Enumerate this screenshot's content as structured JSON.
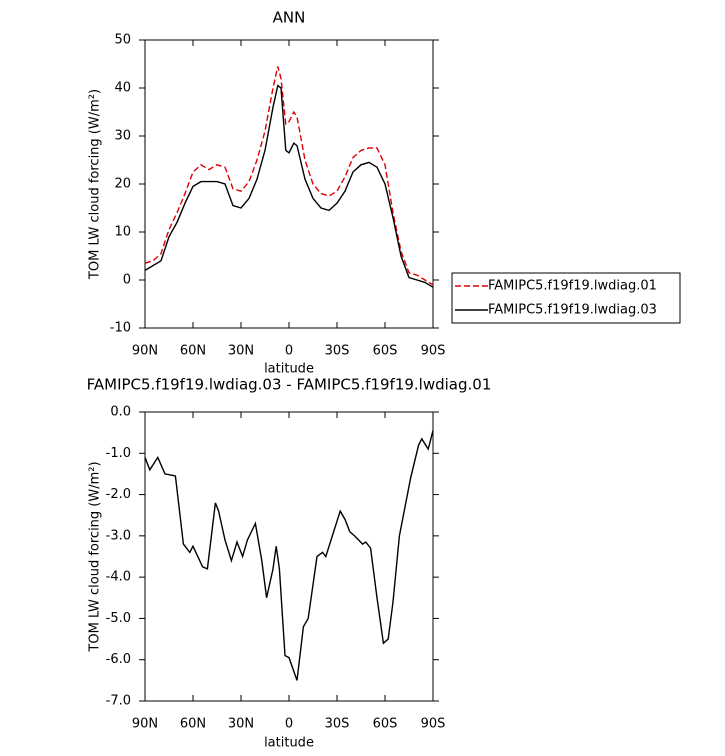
{
  "chart_data": [
    {
      "type": "line",
      "title": "ANN",
      "xlabel": "latitude",
      "ylabel": "TOM LW cloud forcing (W/m²)",
      "x": [
        90,
        85,
        80,
        75,
        70,
        65,
        60,
        55,
        50,
        45,
        40,
        35,
        30,
        25,
        20,
        15,
        10,
        7,
        5,
        2,
        0,
        -3,
        -5,
        -10,
        -15,
        -20,
        -25,
        -30,
        -35,
        -40,
        -45,
        -50,
        -55,
        -60,
        -65,
        -70,
        -75,
        -80,
        -85,
        -90
      ],
      "series": [
        {
          "name": "FAMIPC5.f19f19.lwdiag.01",
          "color": "#e00000",
          "line_style": "dashed",
          "values": [
            3.5,
            4,
            5.5,
            10.5,
            14,
            18,
            22.5,
            24,
            23,
            24,
            23.5,
            19,
            18.5,
            20.5,
            25,
            31,
            40,
            44.5,
            42,
            32.5,
            33,
            35,
            34,
            25,
            20,
            18,
            17.5,
            18.5,
            21.5,
            25.5,
            27,
            27.5,
            27.5,
            24,
            14,
            6,
            1.5,
            1,
            0,
            -1
          ]
        },
        {
          "name": "FAMIPC5.f19f19.lwdiag.03",
          "color": "#000000",
          "line_style": "solid",
          "values": [
            2,
            3,
            4,
            9,
            12,
            16,
            19.5,
            20.5,
            20.5,
            20.5,
            20,
            15.5,
            15,
            17,
            21,
            27,
            36,
            40.5,
            40,
            27,
            26.5,
            28.5,
            28,
            21,
            17,
            15,
            14.5,
            16,
            18.5,
            22.5,
            24,
            24.5,
            23.5,
            20,
            13,
            5,
            0.5,
            0,
            -0.5,
            -1.5
          ]
        }
      ],
      "xlim": [
        90,
        -90
      ],
      "xticks": [
        {
          "value": 90,
          "label": "90N"
        },
        {
          "value": 60,
          "label": "60N"
        },
        {
          "value": 30,
          "label": "30N"
        },
        0,
        {
          "value": -30,
          "label": "30S"
        },
        {
          "value": -60,
          "label": "60S"
        },
        {
          "value": -90,
          "label": "90S"
        }
      ],
      "ylim": [
        -10,
        50
      ],
      "yticks": [
        -10,
        0,
        10,
        20,
        30,
        40,
        50
      ],
      "legend": "right"
    },
    {
      "type": "line",
      "title": "FAMIPC5.f19f19.lwdiag.03 - FAMIPC5.f19f19.lwdiag.01",
      "xlabel": "latitude",
      "ylabel": "TOM LW cloud forcing (W/m²)",
      "x": [
        90,
        87,
        82,
        77.5,
        71,
        66,
        62,
        60,
        54,
        51,
        46,
        44,
        40,
        36,
        32.5,
        29,
        26,
        21,
        17,
        14,
        10,
        8,
        6,
        2.5,
        0,
        -5,
        -9,
        -12,
        -17.5,
        -21,
        -23,
        -32,
        -35,
        -38,
        -41,
        -46,
        -48,
        -51,
        -55,
        -59,
        -62,
        -65,
        -69,
        -76,
        -81,
        -83,
        -87,
        -90
      ],
      "series": [
        {
          "color": "#000000",
          "line_style": "solid",
          "values": [
            -1.1,
            -1.4,
            -1.1,
            -1.5,
            -1.55,
            -3.2,
            -3.4,
            -3.25,
            -3.75,
            -3.8,
            -2.2,
            -2.4,
            -3.1,
            -3.6,
            -3.15,
            -3.5,
            -3.1,
            -2.7,
            -3.6,
            -4.5,
            -3.8,
            -3.25,
            -3.8,
            -5.9,
            -5.95,
            -6.5,
            -5.2,
            -5.0,
            -3.5,
            -3.4,
            -3.5,
            -2.4,
            -2.6,
            -2.9,
            -3.0,
            -3.2,
            -3.15,
            -3.3,
            -4.5,
            -5.6,
            -5.5,
            -4.6,
            -3.0,
            -1.6,
            -0.8,
            -0.65,
            -0.9,
            -0.45
          ]
        }
      ],
      "xlim": [
        90,
        -90
      ],
      "xticks": [
        {
          "value": 90,
          "label": "90N"
        },
        {
          "value": 60,
          "label": "60N"
        },
        {
          "value": 30,
          "label": "30N"
        },
        0,
        {
          "value": -30,
          "label": "30S"
        },
        {
          "value": -60,
          "label": "60S"
        },
        {
          "value": -90,
          "label": "90S"
        }
      ],
      "ylim": [
        -7,
        0
      ],
      "yticks": [
        {
          "value": -7,
          "label": "-7.0"
        },
        {
          "value": -6,
          "label": "-6.0"
        },
        {
          "value": -5,
          "label": "-5.0"
        },
        {
          "value": -4,
          "label": "-4.0"
        },
        {
          "value": -3,
          "label": "-3.0"
        },
        {
          "value": -2,
          "label": "-2.0"
        },
        {
          "value": -1,
          "label": "-1.0"
        },
        {
          "value": 0,
          "label": "0.0"
        }
      ]
    }
  ]
}
